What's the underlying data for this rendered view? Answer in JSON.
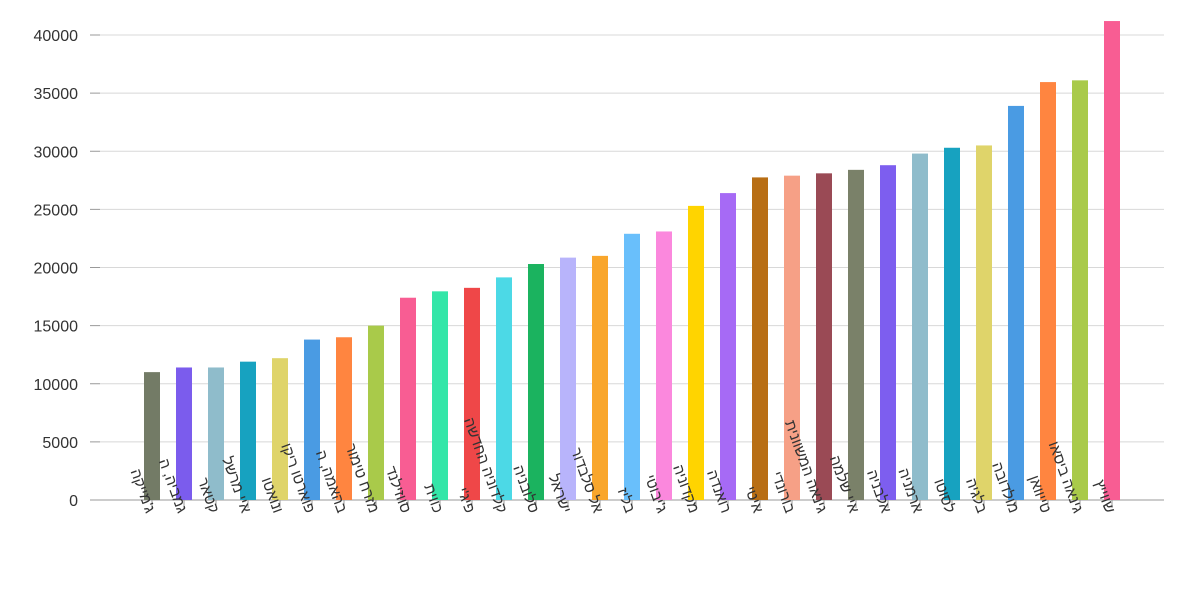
{
  "chart_data": {
    "type": "bar",
    "title": "",
    "xlabel": "",
    "ylabel": "",
    "ylim": [
      0,
      40000
    ],
    "yticks": [
      0,
      5000,
      10000,
      15000,
      20000,
      25000,
      30000,
      35000,
      40000
    ],
    "grid": true,
    "categories": [
      "ג'מייקה",
      "גמביה, ה",
      "קטאר",
      "איי מרשל",
      "ונואטו",
      "פוארטו ריקו",
      "בהאמה, ה",
      "מזרח טימור",
      "סווזילנד",
      "כווית",
      "פיג'י",
      "קלדוניה החדשה",
      "סלובניה",
      "ישראל",
      "אל סלבדור",
      "בליז",
      "ג'יבוטי",
      "מקדוניה",
      "רואנדה",
      "איטי",
      "בורונדי",
      "גינאה המשוונית",
      "איי שלמה",
      "אלבניה",
      "ארמניה",
      "לסוטו",
      "בלגיה",
      "מולדובה",
      "טייוואן",
      "גינאה ביסאו",
      "שווייץ"
    ],
    "values": [
      11000,
      11400,
      11400,
      11900,
      12200,
      13800,
      14000,
      15000,
      17400,
      17950,
      18250,
      19150,
      20300,
      20850,
      21000,
      22900,
      23100,
      25300,
      26400,
      27750,
      27900,
      28100,
      28400,
      28800,
      29800,
      30300,
      30500,
      33900,
      35950,
      36100,
      41200
    ],
    "colors": [
      "#737b66",
      "#7b5ced",
      "#8fbccb",
      "#17a2c0",
      "#dfd46a",
      "#4a9be3",
      "#ff8540",
      "#a9ca4a",
      "#f85d93",
      "#33e6a8",
      "#ef4748",
      "#4cd9e6",
      "#1bb35f",
      "#b8b4fb",
      "#f9a62c",
      "#69bffb",
      "#fb88dd",
      "#ffd400",
      "#a66af5",
      "#b86e14",
      "#f6a086",
      "#9a4a55",
      "#7a8169",
      "#7d5eef",
      "#8fbccb",
      "#17a2c0",
      "#dfd46a",
      "#4a9be3",
      "#ff8540",
      "#a9ca4a",
      "#f85d93"
    ]
  }
}
